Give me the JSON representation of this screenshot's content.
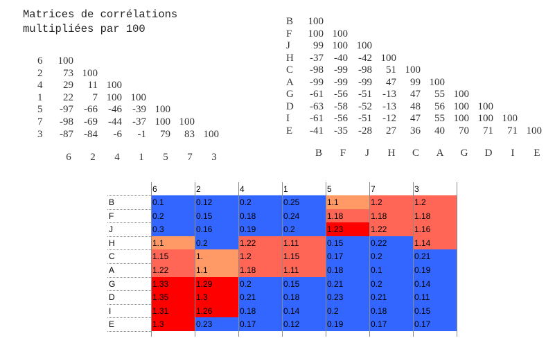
{
  "title": [
    "Matrices de corrélations",
    "multipliées par 100"
  ],
  "left_matrix": {
    "row_labels": [
      "6",
      "2",
      "4",
      "1",
      "5",
      "7",
      "3"
    ],
    "rows": [
      [
        "100"
      ],
      [
        "73",
        "100"
      ],
      [
        "29",
        "11",
        "100"
      ],
      [
        "22",
        "7",
        "100",
        "100"
      ],
      [
        "-97",
        "-66",
        "-46",
        "-39",
        "100"
      ],
      [
        "-98",
        "-69",
        "-44",
        "-37",
        "100",
        "100"
      ],
      [
        "-87",
        "-84",
        "-6",
        "-1",
        "79",
        "83",
        "100"
      ]
    ],
    "col_labels": [
      "6",
      "2",
      "4",
      "1",
      "5",
      "7",
      "3"
    ]
  },
  "right_matrix": {
    "row_labels": [
      "B",
      "F",
      "J",
      "H",
      "C",
      "A",
      "G",
      "D",
      "I",
      "E"
    ],
    "rows": [
      [
        "100"
      ],
      [
        "100",
        "100"
      ],
      [
        "99",
        "100",
        "100"
      ],
      [
        "-37",
        "-40",
        "-42",
        "100"
      ],
      [
        "-98",
        "-99",
        "-98",
        "51",
        "100"
      ],
      [
        "-99",
        "-99",
        "-99",
        "47",
        "99",
        "100"
      ],
      [
        "-61",
        "-56",
        "-51",
        "-13",
        "47",
        "55",
        "100"
      ],
      [
        "-63",
        "-58",
        "-52",
        "-13",
        "48",
        "56",
        "100",
        "100"
      ],
      [
        "-61",
        "-56",
        "-51",
        "-12",
        "47",
        "55",
        "100",
        "100",
        "100"
      ],
      [
        "-41",
        "-35",
        "-28",
        "27",
        "36",
        "40",
        "70",
        "71",
        "71",
        "100"
      ]
    ],
    "col_labels": [
      "B",
      "F",
      "J",
      "H",
      "C",
      "A",
      "G",
      "D",
      "I",
      "E"
    ]
  },
  "grid": {
    "col_headers": [
      "6",
      "2",
      "4",
      "1",
      "5",
      "7",
      "3"
    ],
    "row_labels": [
      "B",
      "F",
      "J",
      "H",
      "C",
      "A",
      "G",
      "D",
      "I",
      "E"
    ],
    "colors": {
      "b": "#3366ff",
      "o": "#ff9966",
      "s": "#ff6655",
      "r": "#ff0000"
    },
    "values": [
      [
        "0.1",
        "0.12",
        "0.2",
        "0.25",
        "1.1",
        "1.2",
        "1.2"
      ],
      [
        "0.2",
        "0.15",
        "0.18",
        "0.24",
        "1.18",
        "1.18",
        "1.18"
      ],
      [
        "0.3",
        "0.16",
        "0.19",
        "0.2",
        "1.23",
        "1.22",
        "1.16"
      ],
      [
        "1.1",
        "0.2",
        "1.22",
        "1.11",
        "0.15",
        "0.22",
        "1.14"
      ],
      [
        "1.15",
        "1.",
        "1.2",
        "1.15",
        "0.17",
        "0.2",
        "0.21"
      ],
      [
        "1.22",
        "1.1",
        "1.18",
        "1.11",
        "0.18",
        "0.1",
        "0.19"
      ],
      [
        "1.33",
        "1.29",
        "0.2",
        "0.15",
        "0.21",
        "0.2",
        "0.14"
      ],
      [
        "1.35",
        "1.3",
        "0.21",
        "0.18",
        "0.23",
        "0.21",
        "0.11"
      ],
      [
        "1.31",
        "1.26",
        "0.18",
        "0.14",
        "0.2",
        "0.18",
        "0.15"
      ],
      [
        "1.3",
        "0.23",
        "0.17",
        "0.12",
        "0.19",
        "0.17",
        "0.17"
      ]
    ],
    "cell_colors": [
      "bbbbosss",
      "bbbbsss",
      "bbbbrss",
      "obssbbs",
      "sossbbb",
      "soss bbb",
      "rrbbbbb",
      "rrbbbbb",
      "rrbbbbb",
      "rbbbbbb"
    ]
  }
}
